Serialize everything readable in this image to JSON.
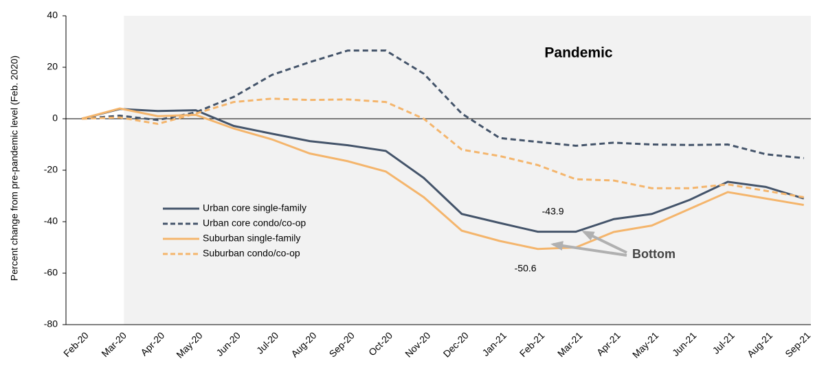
{
  "chart_data": {
    "type": "line",
    "y_label": "Percent change from pre-pandemic level (Feb. 2020)",
    "categories": [
      "Feb-20",
      "Mar-20",
      "Apr-20",
      "May-20",
      "Jun-20",
      "Jul-20",
      "Aug-20",
      "Sep-20",
      "Oct-20",
      "Nov-20",
      "Dec-20",
      "Jan-21",
      "Feb-21",
      "Mar-21",
      "Apr-21",
      "May-21",
      "Jun-21",
      "Jul-21",
      "Aug-21",
      "Sep-21"
    ],
    "series": [
      {
        "name": "Urban core single-family",
        "color": "#44546a",
        "dash": false,
        "values": [
          0,
          3.8,
          3,
          3.3,
          -2.8,
          -5.8,
          -8.7,
          -10.3,
          -12.5,
          -23,
          -37,
          -40.5,
          -43.9,
          -43.9,
          -39,
          -37,
          -31.5,
          -24.5,
          -26.5,
          -31
        ]
      },
      {
        "name": "Urban core condo/co-op",
        "color": "#44546a",
        "dash": true,
        "values": [
          0,
          1.2,
          -0.5,
          2.5,
          8.5,
          17,
          22,
          26.5,
          26.5,
          17.5,
          2,
          -7.5,
          -9,
          -10.5,
          -9.3,
          -10,
          -10.2,
          -10,
          -13.8,
          -15.3
        ]
      },
      {
        "name": "Suburban single-family",
        "color": "#f4b56c",
        "dash": false,
        "values": [
          0,
          4,
          1,
          1.5,
          -3.8,
          -8,
          -13.5,
          -16.5,
          -20.5,
          -30.5,
          -43.5,
          -47.5,
          -50.6,
          -50,
          -44,
          -41.5,
          -35,
          -28.5,
          -31,
          -33.5
        ]
      },
      {
        "name": "Suburban condo/co-op",
        "color": "#f4b56c",
        "dash": true,
        "values": [
          0,
          0.5,
          -2,
          2,
          6.5,
          7.8,
          7.3,
          7.5,
          6.5,
          0,
          -12,
          -14.5,
          -18,
          -23.5,
          -24,
          -27,
          -27,
          -25.5,
          -28,
          -30.5
        ]
      }
    ],
    "ylim": [
      -80,
      40
    ],
    "yticks": [
      -80,
      -60,
      -40,
      -20,
      0,
      20,
      40
    ],
    "shade_label": "Pandemic",
    "shade_color": "#f2f2f2",
    "annotations": [
      "-43.9",
      "-50.6",
      "Bottom"
    ],
    "legend": "center left"
  }
}
